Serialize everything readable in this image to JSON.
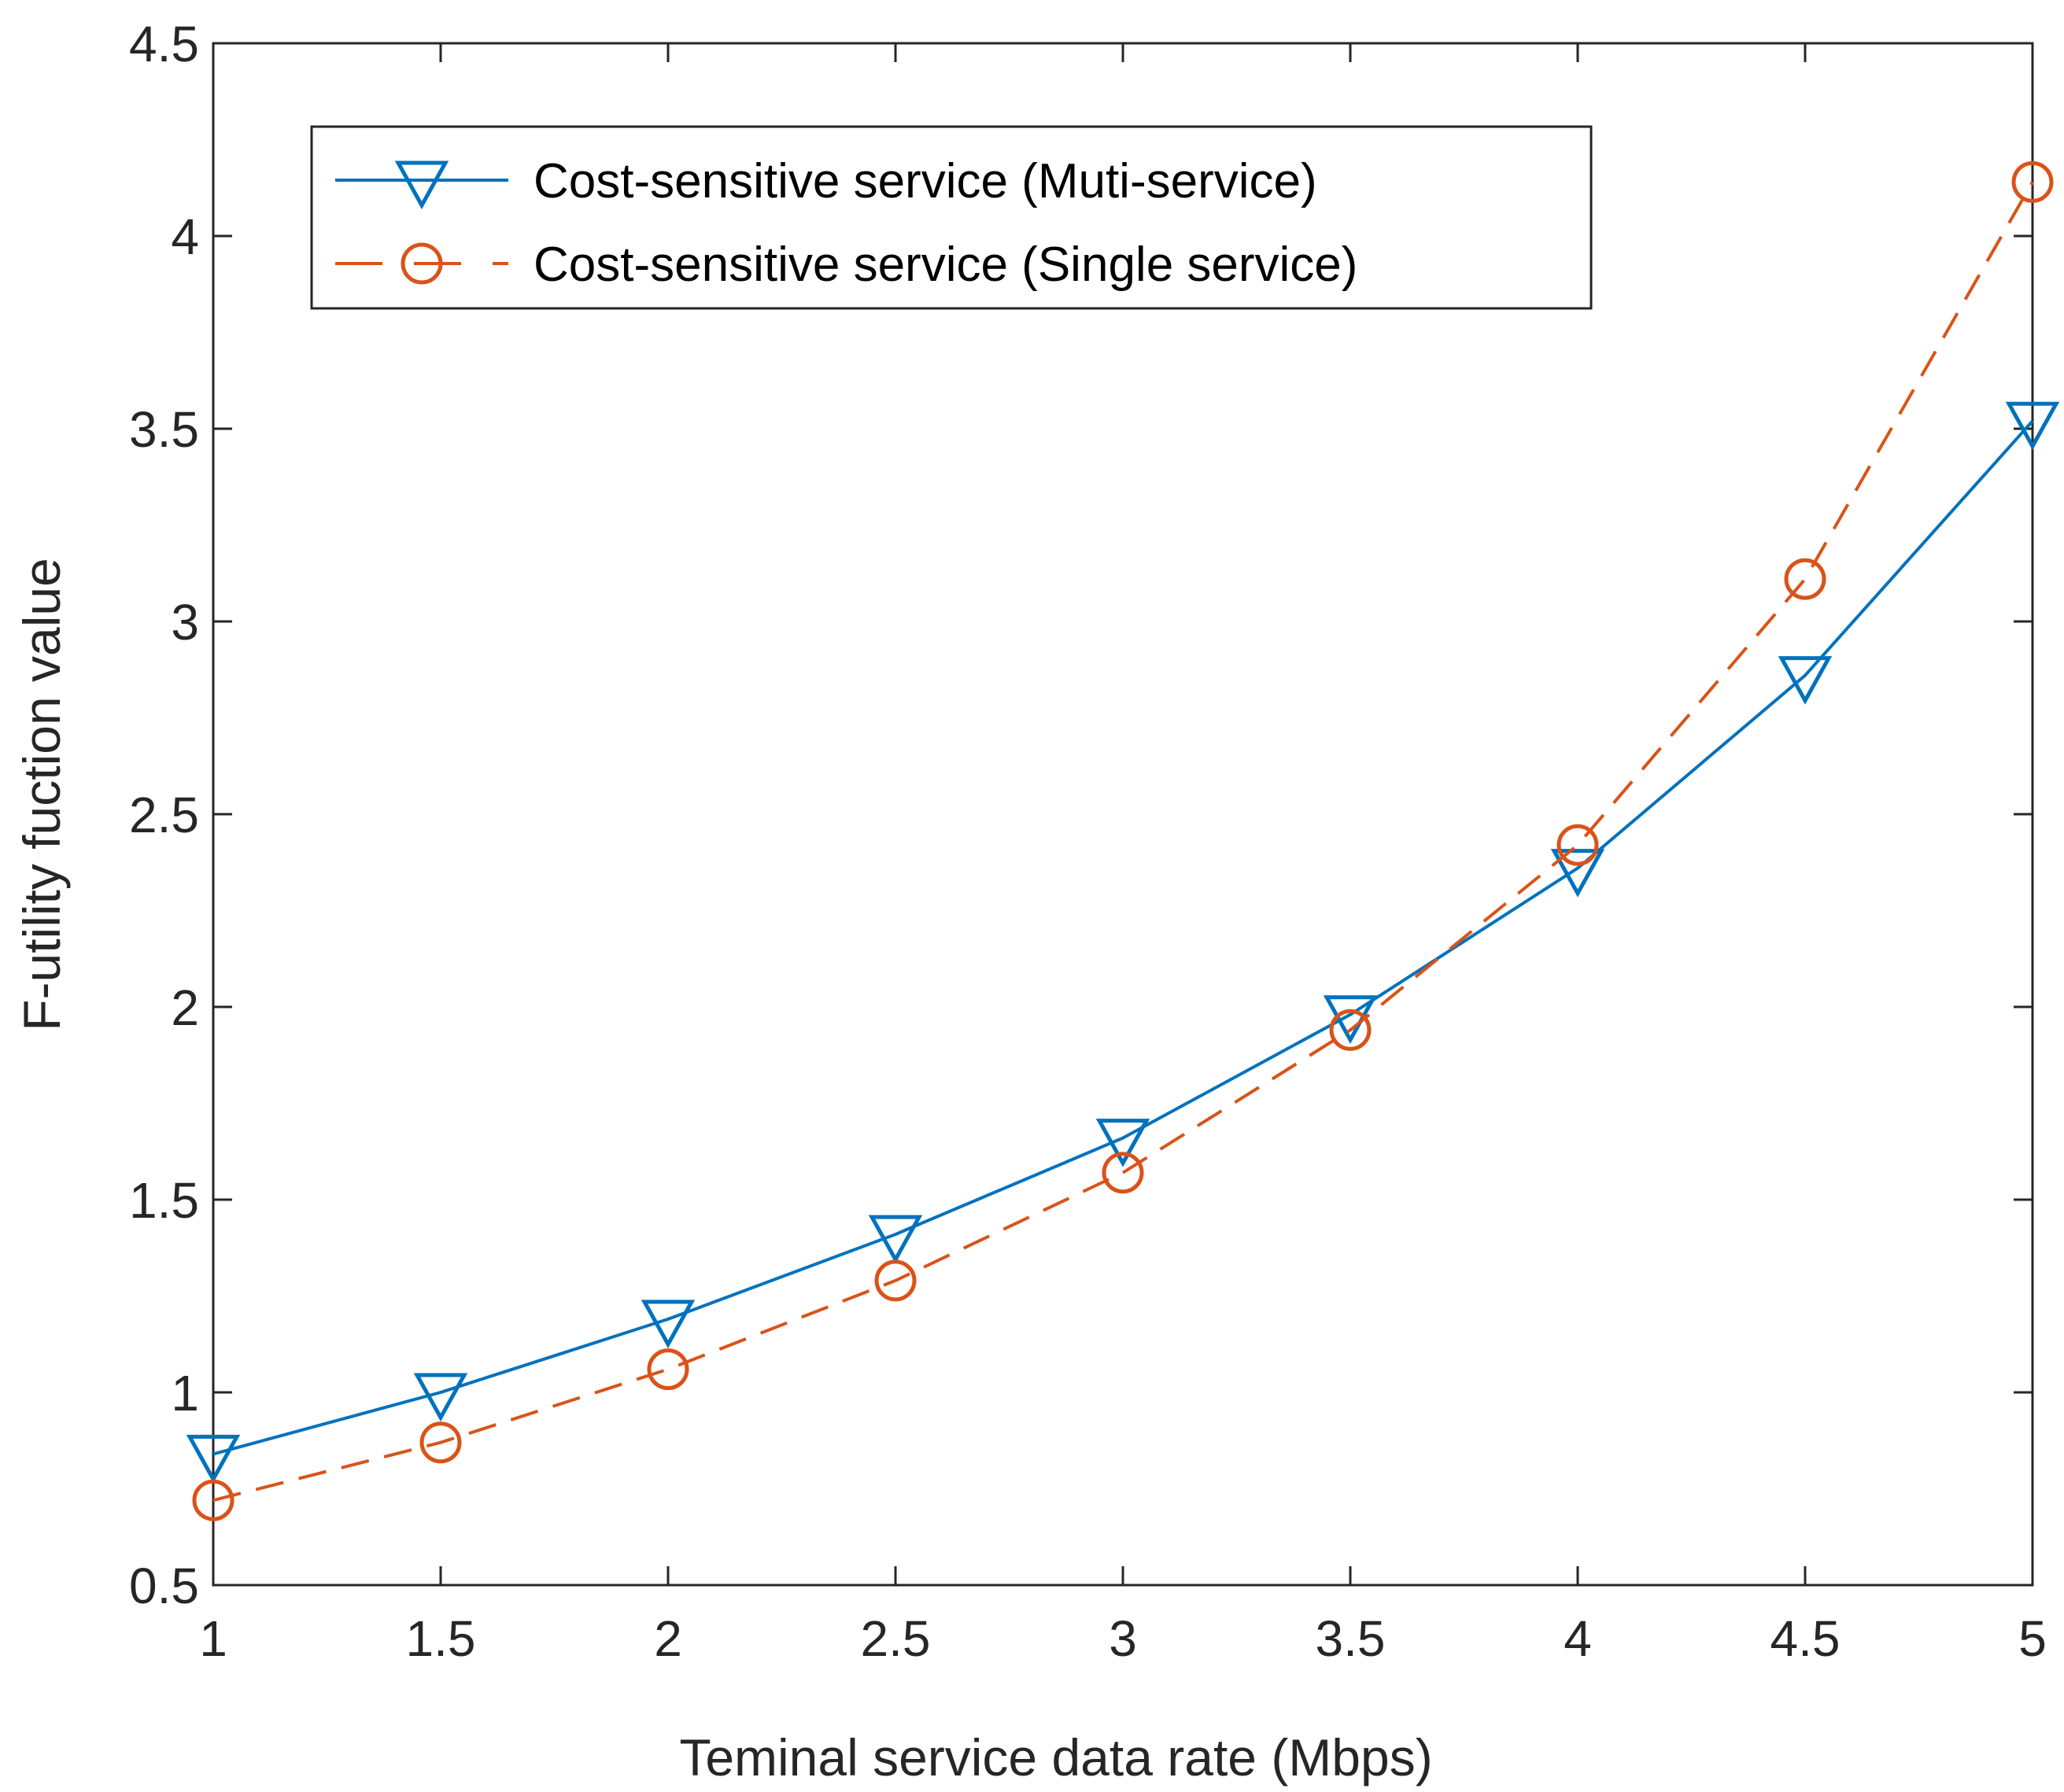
{
  "chart_data": {
    "type": "line",
    "title": "",
    "xlabel": "Teminal service data rate (Mbps)",
    "ylabel": "F-utility fuction value",
    "xlim": [
      1,
      5
    ],
    "ylim": [
      0.5,
      4.5
    ],
    "xticks": [
      1,
      1.5,
      2,
      2.5,
      3,
      3.5,
      4,
      4.5,
      5
    ],
    "yticks": [
      0.5,
      1,
      1.5,
      2,
      2.5,
      3,
      3.5,
      4,
      4.5
    ],
    "xtick_labels": [
      "1",
      "1.5",
      "2",
      "2.5",
      "3",
      "3.5",
      "4",
      "4.5",
      "5"
    ],
    "ytick_labels": [
      "0.5",
      "1",
      "1.5",
      "2",
      "2.5",
      "3",
      "3.5",
      "4",
      "4.5"
    ],
    "grid": false,
    "legend_position": "top-left",
    "x": [
      1,
      1.5,
      2,
      2.5,
      3,
      3.5,
      4,
      4.5,
      5
    ],
    "series": [
      {
        "name": "Cost-sensitive service (Muti-service)",
        "values": [
          0.84,
          1.0,
          1.19,
          1.41,
          1.66,
          1.98,
          2.36,
          2.86,
          3.52
        ],
        "color": "#0072BD",
        "line_style": "solid",
        "marker": "triangle-down"
      },
      {
        "name": "Cost-sensitive service (Single service)",
        "values": [
          0.72,
          0.87,
          1.06,
          1.29,
          1.57,
          1.94,
          2.42,
          3.11,
          4.14
        ],
        "color": "#D95319",
        "line_style": "dashed",
        "marker": "circle"
      }
    ]
  }
}
